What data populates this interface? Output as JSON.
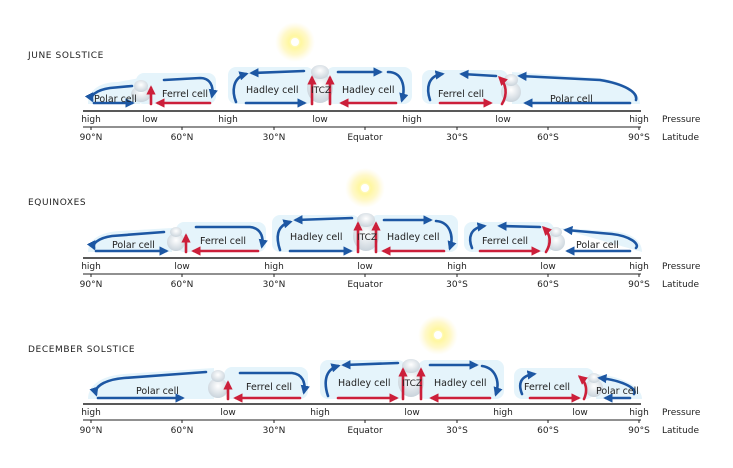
{
  "colors": {
    "arrow_blue": "#1d57a3",
    "arrow_red": "#cc1f3a",
    "cell_fill": "#e5f4fb",
    "sun": "#fff200"
  },
  "legend_right": {
    "pressure": "Pressure",
    "latitude": "Latitude"
  },
  "latitude_ticks": [
    "90°N",
    "60°N",
    "30°N",
    "Equator",
    "30°S",
    "60°S",
    "90°S"
  ],
  "itcz_label": "ITCZ",
  "panels": [
    {
      "season": "JUNE SOLSTICE",
      "pressure_labels": [
        {
          "label": "high"
        },
        {
          "label": "low"
        },
        {
          "label": "high"
        },
        {
          "label": "low"
        },
        {
          "label": "high"
        },
        {
          "label": "low"
        },
        {
          "label": "high"
        }
      ],
      "cells": [
        {
          "name": "Polar cell"
        },
        {
          "name": "Ferrel cell"
        },
        {
          "name": "Hadley cell"
        },
        {
          "name": "Hadley cell"
        },
        {
          "name": "Ferrel cell"
        },
        {
          "name": "Polar cell"
        }
      ]
    },
    {
      "season": "EQUINOXES",
      "pressure_labels": [
        {
          "label": "high"
        },
        {
          "label": "low"
        },
        {
          "label": "high"
        },
        {
          "label": "low"
        },
        {
          "label": "high"
        },
        {
          "label": "low"
        },
        {
          "label": "high"
        }
      ],
      "cells": [
        {
          "name": "Polar cell"
        },
        {
          "name": "Ferrel cell"
        },
        {
          "name": "Hadley cell"
        },
        {
          "name": "Hadley cell"
        },
        {
          "name": "Ferrel cell"
        },
        {
          "name": "Polar cell"
        }
      ]
    },
    {
      "season": "DECEMBER SOLSTICE",
      "pressure_labels": [
        {
          "label": "high"
        },
        {
          "label": "low"
        },
        {
          "label": "high"
        },
        {
          "label": "low"
        },
        {
          "label": "high"
        },
        {
          "label": "low"
        },
        {
          "label": "high"
        }
      ],
      "cells": [
        {
          "name": "Polar cell"
        },
        {
          "name": "Ferrel cell"
        },
        {
          "name": "Hadley cell"
        },
        {
          "name": "Hadley cell"
        },
        {
          "name": "Ferrel cell"
        },
        {
          "name": "Polar cell"
        }
      ]
    }
  ]
}
